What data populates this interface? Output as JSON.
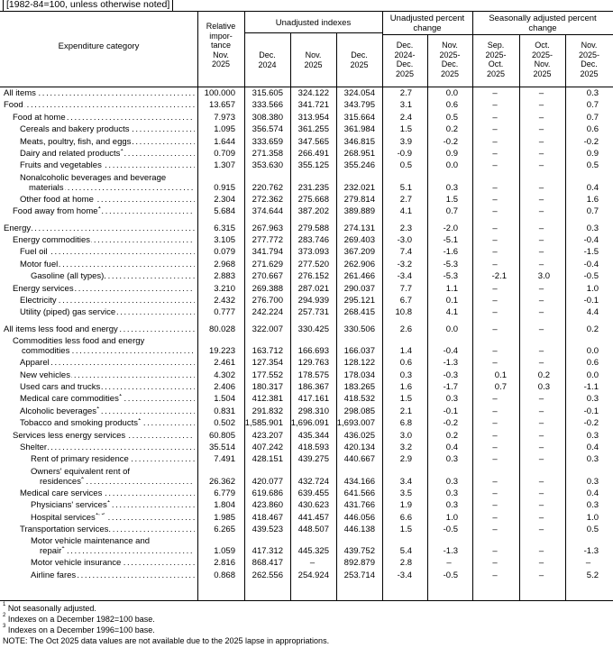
{
  "caption": "[1982-84=100, unless otherwise noted]",
  "headers": {
    "category": "Expenditure category",
    "importance": [
      "Relative",
      "impor-",
      "tance",
      "Nov.",
      "2025"
    ],
    "unadjusted_indexes": "Unadjusted indexes",
    "unadjusted_pct": [
      "Unadjusted percent",
      "change"
    ],
    "seasonal_pct": [
      "Seasonally adjusted percent",
      "change"
    ],
    "sub": [
      [
        "Dec.",
        "2024"
      ],
      [
        "Nov.",
        "2025"
      ],
      [
        "Dec.",
        "2025"
      ],
      [
        "Dec.",
        "2024-",
        "Dec.",
        "2025"
      ],
      [
        "Nov.",
        "2025-",
        "Dec.",
        "2025"
      ],
      [
        "Sep.",
        "2025-",
        "Oct.",
        "2025"
      ],
      [
        "Oct.",
        "2025-",
        "Nov.",
        "2025"
      ],
      [
        "Nov.",
        "2025-",
        "Dec.",
        "2025"
      ]
    ]
  },
  "rows": [
    {
      "label": "All items",
      "ind": 0,
      "v": [
        "100.000",
        "315.605",
        "324.122",
        "324.054",
        "2.7",
        "0.0",
        "–",
        "–",
        "0.3"
      ]
    },
    {
      "label": "Food",
      "ind": 0,
      "v": [
        "13.657",
        "333.566",
        "341.721",
        "343.795",
        "3.1",
        "0.6",
        "–",
        "–",
        "0.7"
      ]
    },
    {
      "label": "Food at home",
      "ind": 1,
      "v": [
        "7.973",
        "308.380",
        "313.954",
        "315.664",
        "2.4",
        "0.5",
        "–",
        "–",
        "0.7"
      ]
    },
    {
      "label": "Cereals and bakery products",
      "ind": 2,
      "v": [
        "1.095",
        "356.574",
        "361.255",
        "361.984",
        "1.5",
        "0.2",
        "–",
        "–",
        "0.6"
      ]
    },
    {
      "label": "Meats, poultry, fish, and eggs",
      "ind": 2,
      "v": [
        "1.644",
        "333.659",
        "347.565",
        "346.815",
        "3.9",
        "-0.2",
        "–",
        "–",
        "-0.2"
      ]
    },
    {
      "label": "Dairy and related products",
      "sup": "1",
      "ind": 2,
      "v": [
        "0.709",
        "271.358",
        "266.491",
        "268.951",
        "-0.9",
        "0.9",
        "–",
        "–",
        "0.9"
      ]
    },
    {
      "label": "Fruits and vegetables",
      "ind": 2,
      "v": [
        "1.307",
        "353.630",
        "355.125",
        "355.246",
        "0.5",
        "0.0",
        "–",
        "–",
        "0.5"
      ]
    },
    {
      "label": "Nonalcoholic beverages and beverage",
      "label2": "materials",
      "ind": 2,
      "v": [
        "0.915",
        "220.762",
        "231.235",
        "232.021",
        "5.1",
        "0.3",
        "–",
        "–",
        "0.4"
      ]
    },
    {
      "label": "Other food at home",
      "ind": 2,
      "v": [
        "2.304",
        "272.362",
        "275.668",
        "279.814",
        "2.7",
        "1.5",
        "–",
        "–",
        "1.6"
      ]
    },
    {
      "label": "Food away from home",
      "sup": "1",
      "ind": 1,
      "v": [
        "5.684",
        "374.644",
        "387.202",
        "389.889",
        "4.1",
        "0.7",
        "–",
        "–",
        "0.7"
      ]
    },
    {
      "label": "Energy",
      "ind": 0,
      "v": [
        "6.315",
        "267.963",
        "279.588",
        "274.131",
        "2.3",
        "-2.0",
        "–",
        "–",
        "0.3"
      ]
    },
    {
      "label": "Energy commodities",
      "ind": 1,
      "v": [
        "3.105",
        "277.772",
        "283.746",
        "269.403",
        "-3.0",
        "-5.1",
        "–",
        "–",
        "-0.4"
      ]
    },
    {
      "label": "Fuel oil",
      "ind": 2,
      "v": [
        "0.079",
        "341.794",
        "373.093",
        "367.209",
        "7.4",
        "-1.6",
        "–",
        "–",
        "-1.5"
      ]
    },
    {
      "label": "Motor fuel",
      "ind": 2,
      "v": [
        "2.968",
        "271.629",
        "277.520",
        "262.906",
        "-3.2",
        "-5.3",
        "–",
        "–",
        "-0.4"
      ]
    },
    {
      "label": "Gasoline (all types)",
      "ind": 3,
      "v": [
        "2.883",
        "270.667",
        "276.152",
        "261.466",
        "-3.4",
        "-5.3",
        "-2.1",
        "3.0",
        "-0.5"
      ]
    },
    {
      "label": "Energy services",
      "ind": 1,
      "v": [
        "3.210",
        "269.388",
        "287.021",
        "290.037",
        "7.7",
        "1.1",
        "–",
        "–",
        "1.0"
      ]
    },
    {
      "label": "Electricity",
      "ind": 2,
      "v": [
        "2.432",
        "276.700",
        "294.939",
        "295.121",
        "6.7",
        "0.1",
        "–",
        "–",
        "-0.1"
      ]
    },
    {
      "label": "Utility (piped) gas service",
      "ind": 2,
      "v": [
        "0.777",
        "242.224",
        "257.731",
        "268.415",
        "10.8",
        "4.1",
        "–",
        "–",
        "4.4"
      ]
    },
    {
      "label": "All items less food and energy",
      "ind": 0,
      "v": [
        "80.028",
        "322.007",
        "330.425",
        "330.506",
        "2.6",
        "0.0",
        "–",
        "–",
        "0.2"
      ]
    },
    {
      "label": "Commodities less food and energy",
      "label2": "commodities",
      "ind": 1,
      "v": [
        "19.223",
        "163.712",
        "166.693",
        "166.037",
        "1.4",
        "-0.4",
        "–",
        "–",
        "0.0"
      ]
    },
    {
      "label": "Apparel",
      "ind": 2,
      "v": [
        "2.461",
        "127.354",
        "129.763",
        "128.122",
        "0.6",
        "-1.3",
        "–",
        "–",
        "0.6"
      ]
    },
    {
      "label": "New vehicles",
      "ind": 2,
      "v": [
        "4.302",
        "177.552",
        "178.575",
        "178.034",
        "0.3",
        "-0.3",
        "0.1",
        "0.2",
        "0.0"
      ]
    },
    {
      "label": "Used cars and trucks",
      "ind": 2,
      "v": [
        "2.406",
        "180.317",
        "186.367",
        "183.265",
        "1.6",
        "-1.7",
        "0.7",
        "0.3",
        "-1.1"
      ]
    },
    {
      "label": "Medical care commodities",
      "sup": "1",
      "ind": 2,
      "v": [
        "1.504",
        "412.381",
        "417.161",
        "418.532",
        "1.5",
        "0.3",
        "–",
        "–",
        "0.3"
      ]
    },
    {
      "label": "Alcoholic beverages",
      "sup": "1",
      "ind": 2,
      "v": [
        "0.831",
        "291.832",
        "298.310",
        "298.085",
        "2.1",
        "-0.1",
        "–",
        "–",
        "-0.1"
      ]
    },
    {
      "label": "Tobacco and smoking products",
      "sup": "1",
      "ind": 2,
      "v": [
        "0.502",
        "1,585.901",
        "1,696.091",
        "1,693.007",
        "6.8",
        "-0.2",
        "–",
        "–",
        "-0.2"
      ]
    },
    {
      "label": "Services less energy services",
      "ind": 1,
      "v": [
        "60.805",
        "423.207",
        "435.344",
        "436.025",
        "3.0",
        "0.2",
        "–",
        "–",
        "0.3"
      ]
    },
    {
      "label": "Shelter",
      "ind": 2,
      "v": [
        "35.514",
        "407.242",
        "418.593",
        "420.134",
        "3.2",
        "0.4",
        "–",
        "–",
        "0.4"
      ]
    },
    {
      "label": "Rent of primary residence",
      "ind": 3,
      "v": [
        "7.491",
        "428.151",
        "439.275",
        "440.667",
        "2.9",
        "0.3",
        "–",
        "–",
        "0.3"
      ]
    },
    {
      "label": "Owners' equivalent rent of",
      "label2": "residences",
      "sup": "2",
      "ind": 3,
      "v": [
        "26.362",
        "420.077",
        "432.724",
        "434.166",
        "3.4",
        "0.3",
        "–",
        "–",
        "0.3"
      ]
    },
    {
      "label": "Medical care services",
      "ind": 2,
      "v": [
        "6.779",
        "619.686",
        "639.455",
        "641.566",
        "3.5",
        "0.3",
        "–",
        "–",
        "0.4"
      ]
    },
    {
      "label": "Physicians' services",
      "sup": "1",
      "ind": 3,
      "v": [
        "1.804",
        "423.860",
        "430.623",
        "431.766",
        "1.9",
        "0.3",
        "–",
        "–",
        "0.3"
      ]
    },
    {
      "label": "Hospital services",
      "sup": "1, 3",
      "ind": 3,
      "v": [
        "1.985",
        "418.467",
        "441.457",
        "446.056",
        "6.6",
        "1.0",
        "–",
        "–",
        "1.0"
      ]
    },
    {
      "label": "Transportation services",
      "ind": 2,
      "v": [
        "6.265",
        "439.523",
        "448.507",
        "446.138",
        "1.5",
        "-0.5",
        "–",
        "–",
        "0.5"
      ]
    },
    {
      "label": "Motor vehicle maintenance and",
      "label2": "repair",
      "sup": "1",
      "ind": 3,
      "v": [
        "1.059",
        "417.312",
        "445.325",
        "439.752",
        "5.4",
        "-1.3",
        "–",
        "–",
        "-1.3"
      ]
    },
    {
      "label": "Motor vehicle insurance",
      "ind": 3,
      "v": [
        "2.816",
        "868.417",
        "–",
        "892.879",
        "2.8",
        "–",
        "–",
        "–",
        "–"
      ]
    },
    {
      "label": "Airline fares",
      "ind": 3,
      "v": [
        "0.868",
        "262.556",
        "254.924",
        "253.714",
        "-3.4",
        "-0.5",
        "–",
        "–",
        "5.2"
      ]
    }
  ],
  "footnotes": [
    {
      "sup": "1",
      "text": " Not seasonally adjusted."
    },
    {
      "sup": "2",
      "text": " Indexes on a December 1982=100 base."
    },
    {
      "sup": "3",
      "text": " Indexes on a December 1996=100 base."
    },
    {
      "sup": "",
      "text": "NOTE: The Oct 2025 data values are not available due to the 2025 lapse in appropriations."
    }
  ]
}
